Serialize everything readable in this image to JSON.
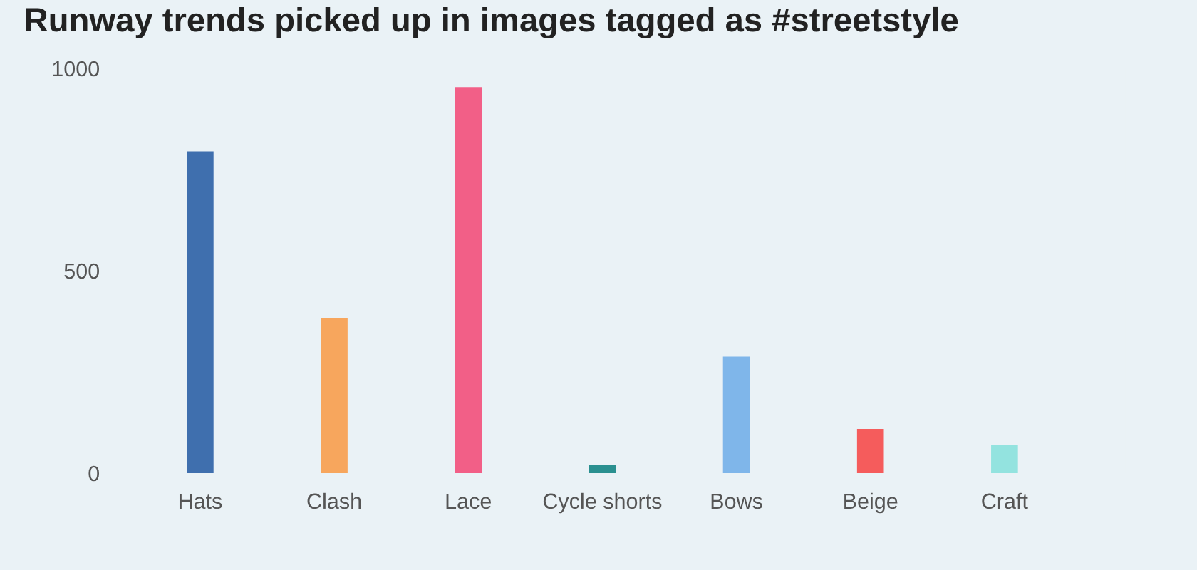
{
  "chart_data": {
    "type": "bar",
    "title": "Runway trends picked up in images tagged as #streetstyle",
    "categories": [
      "Hats",
      "Clash",
      "Lace",
      "Cycle shorts",
      "Bows",
      "Beige",
      "Craft"
    ],
    "values": [
      795,
      382,
      954,
      21,
      288,
      109,
      70
    ],
    "colors": [
      "#3f6fae",
      "#f7a65d",
      "#f25f87",
      "#2a9090",
      "#7fb6ea",
      "#f55c5c",
      "#93e3df"
    ],
    "ylim": [
      0,
      1000
    ],
    "yticks": [
      0,
      500,
      1000
    ],
    "grid": false,
    "legend": false
  }
}
